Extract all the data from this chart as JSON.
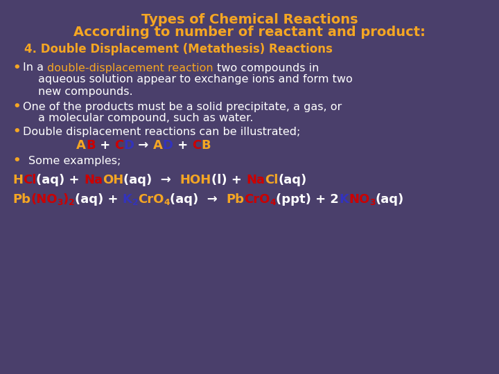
{
  "bg_color": "#4a3f6b",
  "title_line1": "Types of Chemical Reactions",
  "title_line2": "According to number of reactant and product:",
  "orange": "#f5a623",
  "white": "#ffffff",
  "red": "#cc0000",
  "blue": "#3333bb",
  "subtitle": "4. Double Displacement (Metathesis) Reactions"
}
